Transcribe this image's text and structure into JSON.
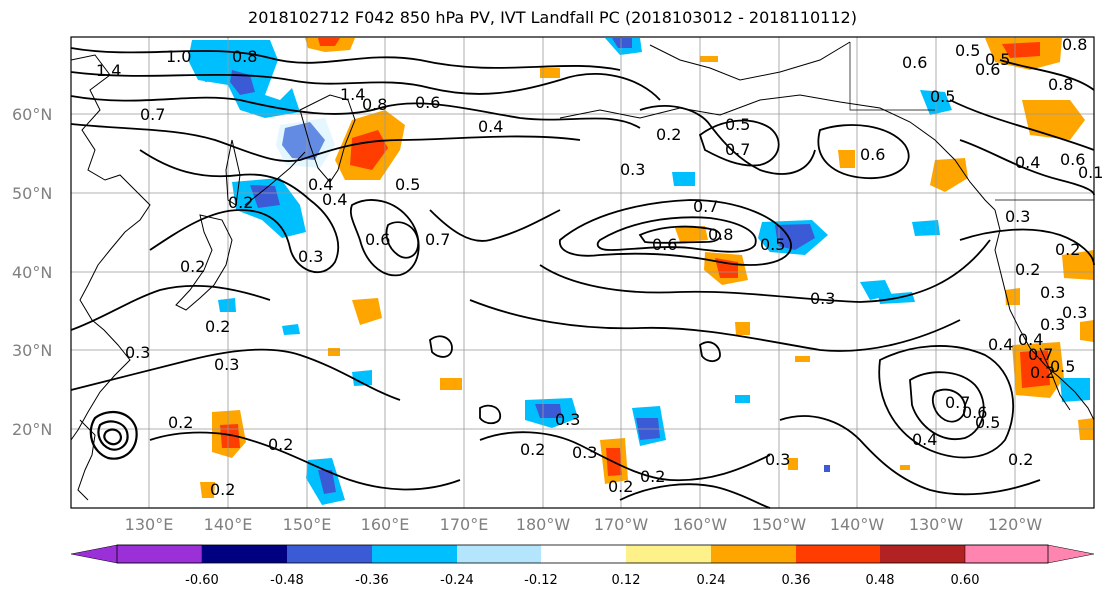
{
  "title": "2018102712 F042 850 hPa PV, IVT Landfall PC (2018103012 - 2018110112)",
  "lat_labels": [
    "60°N",
    "50°N",
    "40°N",
    "30°N",
    "20°N"
  ],
  "lon_labels": [
    "130°E",
    "140°E",
    "150°E",
    "160°E",
    "170°E",
    "180°W",
    "170°W",
    "160°W",
    "150°W",
    "140°W",
    "130°W",
    "120°W"
  ],
  "colorbar": {
    "colors": [
      "#9b30d9",
      "#000080",
      "#3b5bd6",
      "#00bfff",
      "#b3e5fc",
      "#ffffff",
      "#fff18a",
      "#ffa500",
      "#ff3d00",
      "#b22222",
      "#ff85b0"
    ],
    "tick_labels": [
      "-0.60",
      "-0.48",
      "-0.36",
      "-0.24",
      "-0.12",
      "0.12",
      "0.24",
      "0.36",
      "0.48",
      "0.60"
    ]
  },
  "contour_labels": [
    "1.4",
    "1.0",
    "0.8",
    "0.7",
    "1.4",
    "0.8",
    "0.6",
    "0.4",
    "0.2",
    "0.5",
    "0.6",
    "0.8",
    "0.6",
    "0.5",
    "0.3",
    "0.4",
    "0.2",
    "0.4",
    "0.6",
    "0.7",
    "0.2",
    "0.3",
    "0.2",
    "0.7",
    "0.6",
    "0.8",
    "0.5",
    "0.3",
    "0.4",
    "0.6",
    "0.5",
    "0.7",
    "0.3",
    "0.2",
    "0.3",
    "0.4",
    "0.2",
    "0.7",
    "0.6",
    "0.5",
    "0.4",
    "0.2",
    "0.3",
    "0.2",
    "0.2",
    "0.3",
    "0.2",
    "0.2",
    "0.3",
    "0.2",
    "0.3",
    "0.2",
    "0.2",
    "0.3",
    "0.7",
    "0.5",
    "0.6",
    "0.8",
    "0.5",
    "0.3",
    "0.3",
    "0.4",
    "0.5",
    "0.1"
  ]
}
